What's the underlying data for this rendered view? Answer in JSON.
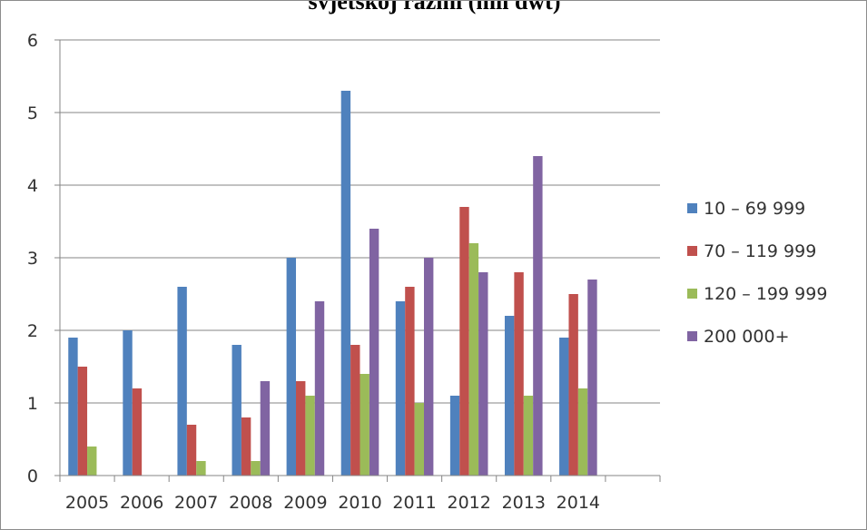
{
  "chart_data": {
    "type": "bar",
    "title": "svjetskoj razini (mil dwt)",
    "categories": [
      "2005",
      "2006",
      "2007",
      "2008",
      "2009",
      "2010",
      "2011",
      "2012",
      "2013",
      "2014"
    ],
    "ylim": [
      0,
      6
    ],
    "yticks": [
      "0",
      "1",
      "2",
      "3",
      "4",
      "5",
      "6"
    ],
    "grid": true,
    "legend_position": "right",
    "series": [
      {
        "name": "10 – 69 999",
        "color": "#4f81bd",
        "values": [
          1.9,
          2.0,
          2.6,
          1.8,
          3.0,
          5.3,
          2.4,
          1.1,
          2.2,
          1.9
        ]
      },
      {
        "name": "70 – 119 999",
        "color": "#c0504d",
        "values": [
          1.5,
          1.2,
          0.7,
          0.8,
          1.3,
          1.8,
          2.6,
          3.7,
          2.8,
          2.5
        ]
      },
      {
        "name": "120 – 199 999",
        "color": "#9bbb59",
        "values": [
          0.4,
          0,
          0.2,
          0.2,
          1.1,
          1.4,
          1.0,
          3.2,
          1.1,
          1.2
        ]
      },
      {
        "name": "200 000+",
        "color": "#8064a2",
        "values": [
          0,
          0,
          0,
          1.3,
          2.4,
          3.4,
          3.0,
          2.8,
          4.4,
          2.7
        ]
      }
    ]
  }
}
